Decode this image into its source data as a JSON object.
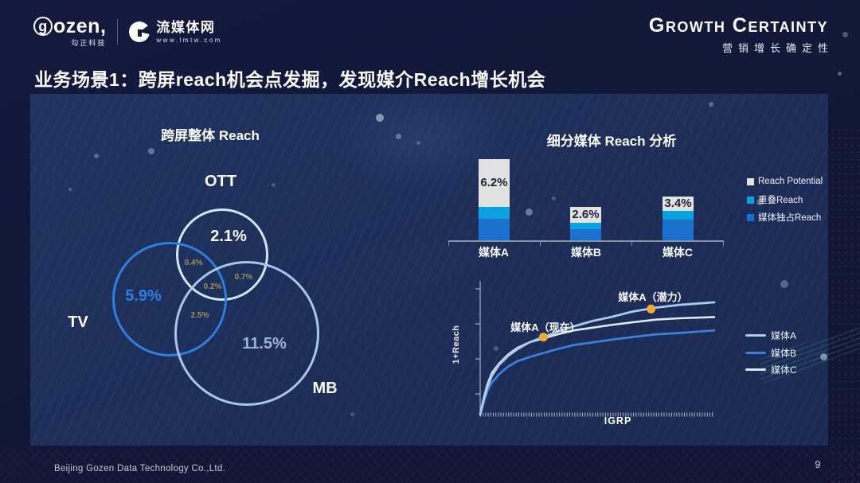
{
  "header": {
    "logo_gozen": "gozen,",
    "logo_gozen_g": "g",
    "logo_gozen_rest": "ozen,",
    "logo_gozen_sub": "勾正科技",
    "logo_lmtw": "流媒体网",
    "logo_lmtw_sub": "www.lmtw.com",
    "brand_title": "Growth Certainty",
    "brand_subtitle": "营销增长确定性"
  },
  "title": "业务场景1：跨屏reach机会点发掘，发现媒介Reach增长机会",
  "venn": {
    "title": "跨屏整体 Reach",
    "ott_label": "OTT",
    "ott_value": "2.1%",
    "tv_label": "TV",
    "tv_value": "5.9%",
    "mb_label": "MB",
    "mb_value": "11.5%",
    "overlap_tv_ott": "0.4%",
    "overlap_ott_mb": "0.7%",
    "overlap_center": "0.2%",
    "overlap_tv_mb": "2.5%"
  },
  "bars": {
    "title": "细分媒体 Reach 分析",
    "categories": [
      "媒体A",
      "媒体B",
      "媒体C"
    ],
    "labels": [
      "6.2%",
      "2.6%",
      "3.4%"
    ],
    "legend": [
      "Reach Potential",
      "重叠Reach",
      "媒体独占Reach"
    ]
  },
  "lines": {
    "ylabel": "1+Reach",
    "xlabel": "IGRP",
    "legend": [
      "媒体A",
      "媒体B",
      "媒体C"
    ],
    "ann_now": "媒体A（现在）",
    "ann_potential": "媒体A（潜力）"
  },
  "footer": {
    "company": "Beijing Gozen Data Technology Co.,Ltd.",
    "page": "9"
  },
  "colors": {
    "accent_blue": "#2e7de0",
    "pale_blue": "#d3e5f8",
    "periwinkle": "#a9c6ea",
    "overlap_text": "#a08d5c",
    "venn_mb_value": "#9db3d6"
  },
  "chart_data": [
    {
      "type": "venn",
      "title": "跨屏整体 Reach",
      "unit": "%",
      "sets": [
        {
          "label": "TV",
          "value": 5.9,
          "color": "#2e7de0"
        },
        {
          "label": "OTT",
          "value": 2.1,
          "color": "#d3e5f8"
        },
        {
          "label": "MB",
          "value": 11.5,
          "color": "#a9c6ea"
        }
      ],
      "overlaps": [
        {
          "between": [
            "TV",
            "OTT"
          ],
          "value": 0.4
        },
        {
          "between": [
            "OTT",
            "MB"
          ],
          "value": 0.7
        },
        {
          "between": [
            "TV",
            "OTT",
            "MB"
          ],
          "value": 0.2
        },
        {
          "between": [
            "TV",
            "MB"
          ],
          "value": 2.5
        }
      ]
    },
    {
      "type": "bar",
      "stacked": true,
      "title": "细分媒体 Reach 分析",
      "categories": [
        "媒体A",
        "媒体B",
        "媒体C"
      ],
      "series": [
        {
          "name": "媒体独占Reach",
          "color": "#1a70cc",
          "values": [
            1.7,
            0.9,
            1.6
          ]
        },
        {
          "name": "重叠Reach",
          "color": "#0aa2e0",
          "values": [
            0.9,
            0.5,
            0.7
          ]
        },
        {
          "name": "Reach Potential",
          "color": "#e2e2e2",
          "values": [
            3.6,
            1.2,
            1.1
          ]
        }
      ],
      "totals_labels": [
        "6.2%",
        "2.6%",
        "3.4%"
      ],
      "unit": "%",
      "legend_position": "right",
      "grid": false
    },
    {
      "type": "line",
      "title": "",
      "xlabel": "IGRP",
      "ylabel": "1+Reach",
      "grid": false,
      "legend_position": "right",
      "x_range_pct": [
        0,
        100
      ],
      "y_range_pct": [
        0,
        100
      ],
      "series": [
        {
          "name": "媒体A",
          "color": "#a9c9ee",
          "points": [
            [
              0,
              0
            ],
            [
              1.5,
              11
            ],
            [
              3,
              20
            ],
            [
              5,
              29
            ],
            [
              8,
              37
            ],
            [
              12,
              44
            ],
            [
              16,
              49
            ],
            [
              21,
              54
            ],
            [
              27,
              58
            ],
            [
              33,
              62
            ],
            [
              40,
              66
            ],
            [
              48,
              70
            ],
            [
              56,
              73
            ],
            [
              65,
              77
            ],
            [
              75,
              80
            ],
            [
              85,
              82
            ],
            [
              100,
              84
            ]
          ]
        },
        {
          "name": "媒体B",
          "color": "#3e7ed8",
          "points": [
            [
              0,
              0
            ],
            [
              1.5,
              9
            ],
            [
              3,
              17
            ],
            [
              5,
              24
            ],
            [
              8,
              30
            ],
            [
              12,
              36
            ],
            [
              16,
              40
            ],
            [
              21,
              43
            ],
            [
              27,
              46
            ],
            [
              33,
              49
            ],
            [
              40,
              52
            ],
            [
              48,
              54
            ],
            [
              56,
              56
            ],
            [
              65,
              58
            ],
            [
              75,
              60
            ],
            [
              85,
              61
            ],
            [
              100,
              63
            ]
          ]
        },
        {
          "name": "媒体C",
          "color": "#dde8f5",
          "points": [
            [
              0,
              0
            ],
            [
              1.5,
              12
            ],
            [
              3,
              22
            ],
            [
              5,
              31
            ],
            [
              8,
              38
            ],
            [
              12,
              45
            ],
            [
              16,
              50
            ],
            [
              21,
              54
            ],
            [
              27,
              57
            ],
            [
              33,
              60
            ],
            [
              40,
              63
            ],
            [
              48,
              65
            ],
            [
              56,
              67
            ],
            [
              65,
              69
            ],
            [
              75,
              71
            ],
            [
              85,
              72
            ],
            [
              100,
              73
            ]
          ]
        }
      ],
      "annotations": [
        {
          "label": "媒体A（现在）",
          "x": 27,
          "y": 58,
          "marker_color": "#f2a93b"
        },
        {
          "label": "媒体A（潜力）",
          "x": 73,
          "y": 79,
          "marker_color": "#f2a93b"
        }
      ]
    }
  ]
}
